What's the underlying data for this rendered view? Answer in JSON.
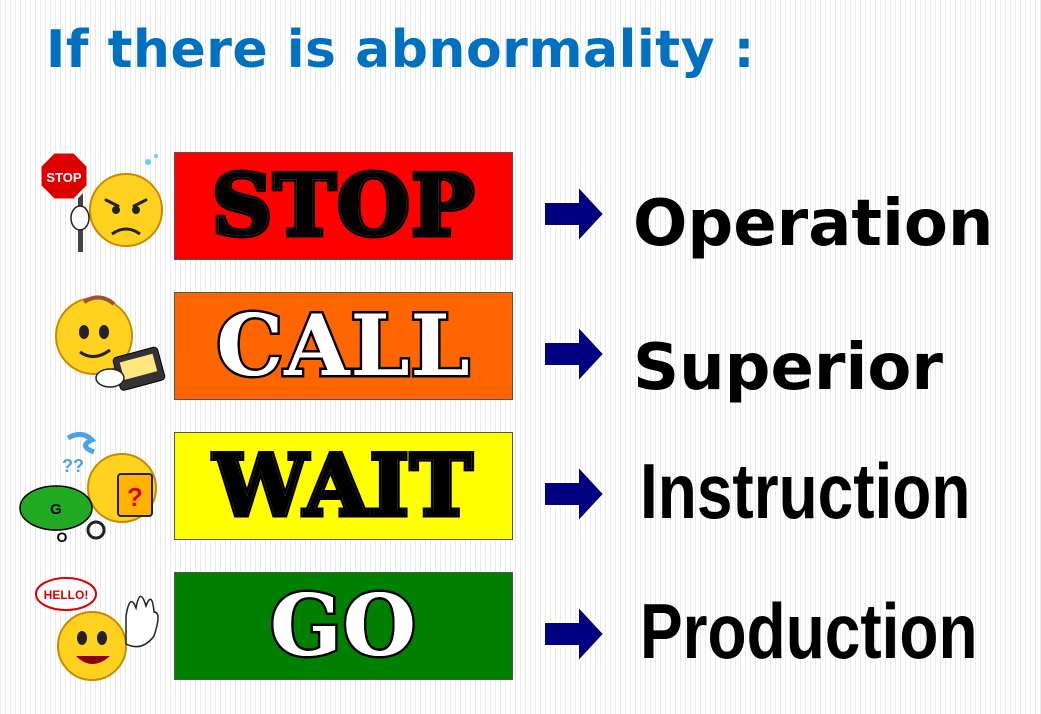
{
  "title": "If there is abnormality :",
  "rows": [
    {
      "sign": "STOP",
      "sign_color": "#ff0000",
      "action": "Operation",
      "emoji": "stop-sign-emoji-icon",
      "emoji_label": "STOP"
    },
    {
      "sign": "CALL",
      "sign_color": "#ff6600",
      "action": "Superior",
      "emoji": "phone-emoji-icon"
    },
    {
      "sign": "WAIT",
      "sign_color": "#ffff00",
      "action": "Instruction",
      "emoji": "confused-emoji-icon",
      "emoji_label": "G\nO"
    },
    {
      "sign": "GO",
      "sign_color": "#008000",
      "action": "Production",
      "emoji": "waving-emoji-icon",
      "emoji_label": "HELLO!"
    }
  ],
  "colors": {
    "title": "#0070c0",
    "arrow": "#000080"
  }
}
